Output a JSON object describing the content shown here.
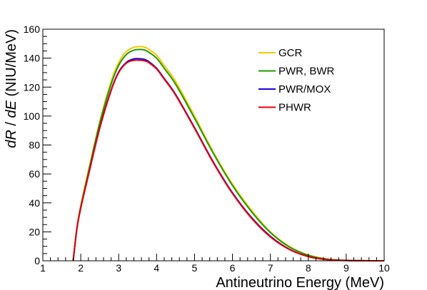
{
  "chart_data": {
    "type": "line",
    "title": "",
    "xlabel": "Antineutrino Energy (MeV)",
    "ylabel_parts": {
      "dR": "dR",
      "slash": " / ",
      "dE": "dE",
      "units": " (NIU/MeV)"
    },
    "xlim": [
      1,
      10
    ],
    "ylim": [
      0,
      160
    ],
    "x_ticks": [
      1,
      2,
      3,
      4,
      5,
      6,
      7,
      8,
      9,
      10
    ],
    "y_ticks": [
      0,
      20,
      40,
      60,
      80,
      100,
      120,
      140,
      160
    ],
    "grid": false,
    "legend_position": "top-right",
    "x": [
      1.8,
      1.9,
      2.0,
      2.2,
      2.5,
      2.8,
      3.0,
      3.2,
      3.4,
      3.6,
      3.7,
      3.8,
      4.0,
      4.2,
      4.5,
      5.0,
      5.5,
      6.0,
      6.5,
      7.0,
      7.5,
      8.0,
      8.5,
      9.0,
      9.5,
      10.0
    ],
    "series": [
      {
        "name": "GCR",
        "color": "#f5c800",
        "values": [
          0,
          23,
          38,
          62,
          96,
          124,
          137,
          144.5,
          147.5,
          148,
          147.5,
          146,
          142,
          135,
          124,
          100,
          75,
          53,
          35,
          20,
          10,
          4,
          1.2,
          0.3,
          0.05,
          0
        ]
      },
      {
        "name": "PWR, BWR",
        "color": "#1f9a00",
        "values": [
          0,
          23,
          37.5,
          61,
          95,
          122,
          135,
          142.5,
          145.5,
          146,
          145.5,
          144,
          140,
          133,
          122,
          98.5,
          74,
          52,
          34,
          19.5,
          9.5,
          3.8,
          1.1,
          0.3,
          0.05,
          0
        ]
      },
      {
        "name": "PWR/MOX",
        "color": "#1a00e6",
        "values": [
          0,
          22.5,
          36.5,
          59,
          92,
          118,
          130.5,
          137,
          139.5,
          139.5,
          139,
          137.5,
          133,
          126,
          115,
          92,
          68,
          47,
          30,
          17,
          8,
          3,
          0.8,
          0.2,
          0.03,
          0
        ]
      },
      {
        "name": "PHWR",
        "color": "#e60000",
        "values": [
          0,
          22.5,
          36.5,
          59,
          91.5,
          117.5,
          130,
          136.5,
          138.5,
          138.5,
          138,
          136.8,
          132.5,
          125.5,
          114.5,
          91.5,
          67.5,
          46.5,
          29.5,
          16.5,
          7.8,
          2.9,
          0.8,
          0.2,
          0.03,
          0
        ]
      }
    ]
  }
}
